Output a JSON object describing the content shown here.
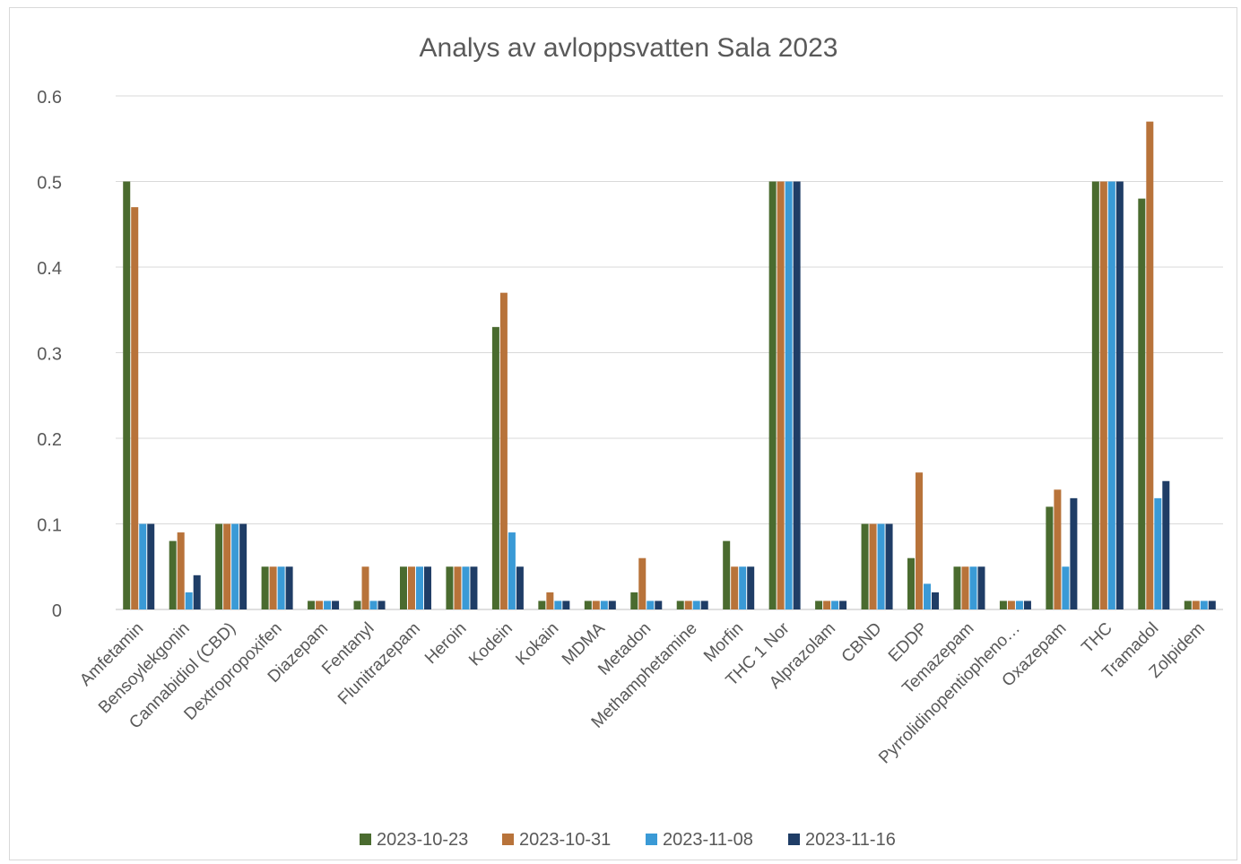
{
  "chart_data": {
    "type": "bar",
    "title": "Analys av avloppsvatten Sala 2023",
    "xlabel": "",
    "ylabel": "",
    "ylim": [
      0,
      0.6
    ],
    "yticks": [
      "0",
      "0.1",
      "0.2",
      "0.3",
      "0.4",
      "0.5",
      "0.6"
    ],
    "grid": true,
    "legend_position": "bottom",
    "categories": [
      "Amfetamin",
      "Bensoylekgonin",
      "Cannabidiol (CBD)",
      "Dextropropoxifen",
      "Diazepam",
      "Fentanyl",
      "Flunitrazepam",
      "Heroin",
      "Kodein",
      "Kokain",
      "MDMA",
      "Metadon",
      "Methamphetamine",
      "Morfin",
      "THC 1 Nor",
      "Alprazolam",
      "CBND",
      "EDDP",
      "Temazepam",
      "Pyrrolidinopentiopheno…",
      "Oxazepam",
      "THC",
      "Tramadol",
      "Zolpidem"
    ],
    "series": [
      {
        "name": "2023-10-23",
        "color": "#4a6b2f",
        "values": [
          0.5,
          0.08,
          0.1,
          0.05,
          0.01,
          0.01,
          0.05,
          0.05,
          0.33,
          0.01,
          0.01,
          0.02,
          0.01,
          0.08,
          0.5,
          0.01,
          0.1,
          0.06,
          0.05,
          0.01,
          0.12,
          0.5,
          0.48,
          0.01
        ]
      },
      {
        "name": "2023-10-31",
        "color": "#b8733a",
        "values": [
          0.47,
          0.09,
          0.1,
          0.05,
          0.01,
          0.05,
          0.05,
          0.05,
          0.37,
          0.02,
          0.01,
          0.06,
          0.01,
          0.05,
          0.5,
          0.01,
          0.1,
          0.16,
          0.05,
          0.01,
          0.14,
          0.5,
          0.57,
          0.01
        ]
      },
      {
        "name": "2023-11-08",
        "color": "#3a9ad6",
        "values": [
          0.1,
          0.02,
          0.1,
          0.05,
          0.01,
          0.01,
          0.05,
          0.05,
          0.09,
          0.01,
          0.01,
          0.01,
          0.01,
          0.05,
          0.5,
          0.01,
          0.1,
          0.03,
          0.05,
          0.01,
          0.05,
          0.5,
          0.13,
          0.01
        ]
      },
      {
        "name": "2023-11-16",
        "color": "#1f3d66",
        "values": [
          0.1,
          0.04,
          0.1,
          0.05,
          0.01,
          0.01,
          0.05,
          0.05,
          0.05,
          0.01,
          0.01,
          0.01,
          0.01,
          0.05,
          0.5,
          0.01,
          0.1,
          0.02,
          0.05,
          0.01,
          0.13,
          0.5,
          0.15,
          0.01
        ]
      }
    ]
  }
}
